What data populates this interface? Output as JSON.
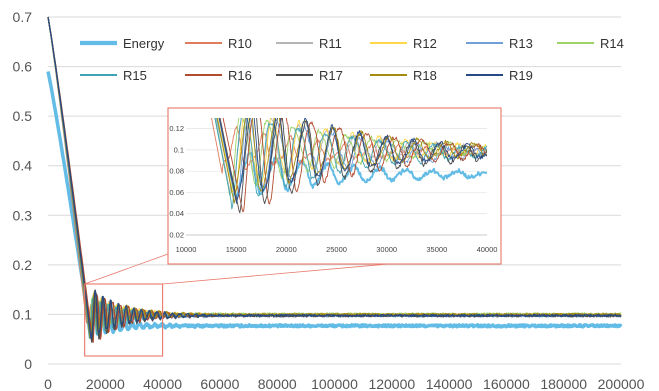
{
  "chart_data": {
    "type": "line",
    "title": "",
    "xlabel": "",
    "ylabel": "",
    "grid": true,
    "legend_position": "top",
    "main": {
      "xlim": [
        0,
        200000
      ],
      "ylim": [
        0,
        0.7
      ],
      "x_ticks": [
        "0",
        "20000",
        "40000",
        "60000",
        "80000",
        "100000",
        "120000",
        "140000",
        "160000",
        "180000",
        "200000"
      ],
      "y_ticks": [
        "0",
        "0.1",
        "0.2",
        "0.3",
        "0.4",
        "0.5",
        "0.6",
        "0.7"
      ],
      "zoom_region": {
        "x": [
          10000,
          40000
        ],
        "y": [
          0.02,
          0.13
        ]
      }
    },
    "inset": {
      "xlim": [
        10000,
        40000
      ],
      "ylim": [
        0.02,
        0.13
      ],
      "x_ticks": [
        "10000",
        "15000",
        "20000",
        "25000",
        "30000",
        "35000",
        "40000"
      ],
      "y_ticks": [
        "0.02",
        "0.04",
        "0.06",
        "0.08",
        "0.1",
        "0.12"
      ]
    },
    "series": [
      {
        "name": "Energy",
        "color": "#63bce5",
        "width": 3.5,
        "start": 0.59,
        "min_x": 15000,
        "min_y": 0.055,
        "plateau": 0.077,
        "amp": 0.012,
        "period": 2600,
        "phase": 0.0
      },
      {
        "name": "R10",
        "color": "#e07b5b",
        "width": 1.3,
        "start": 0.7,
        "min_x": 13600,
        "min_y": 0.078,
        "plateau": 0.098,
        "amp": 0.03,
        "period": 2700,
        "phase": 0.9
      },
      {
        "name": "R11",
        "color": "#b5b5b5",
        "width": 1.3,
        "start": 0.7,
        "min_x": 14400,
        "min_y": 0.06,
        "plateau": 0.099,
        "amp": 0.026,
        "period": 2750,
        "phase": 1.6
      },
      {
        "name": "R12",
        "color": "#ffd84a",
        "width": 1.3,
        "start": 0.7,
        "min_x": 14700,
        "min_y": 0.058,
        "plateau": 0.1,
        "amp": 0.025,
        "period": 2650,
        "phase": 2.3
      },
      {
        "name": "R13",
        "color": "#6fa0d8",
        "width": 1.3,
        "start": 0.7,
        "min_x": 14900,
        "min_y": 0.055,
        "plateau": 0.097,
        "amp": 0.026,
        "period": 2800,
        "phase": 3.0
      },
      {
        "name": "R14",
        "color": "#9fd36a",
        "width": 1.3,
        "start": 0.7,
        "min_x": 14300,
        "min_y": 0.062,
        "plateau": 0.101,
        "amp": 0.025,
        "period": 2600,
        "phase": 3.7
      },
      {
        "name": "R15",
        "color": "#3fa3b5",
        "width": 1.3,
        "start": 0.7,
        "min_x": 14500,
        "min_y": 0.052,
        "plateau": 0.098,
        "amp": 0.027,
        "period": 2700,
        "phase": 4.4
      },
      {
        "name": "R16",
        "color": "#b24a2e",
        "width": 1.3,
        "start": 0.7,
        "min_x": 15600,
        "min_y": 0.044,
        "plateau": 0.099,
        "amp": 0.028,
        "period": 2750,
        "phase": 5.1
      },
      {
        "name": "R17",
        "color": "#4e4e4e",
        "width": 1.3,
        "start": 0.7,
        "min_x": 15300,
        "min_y": 0.042,
        "plateau": 0.097,
        "amp": 0.028,
        "period": 2650,
        "phase": 5.8
      },
      {
        "name": "R18",
        "color": "#a48b12",
        "width": 1.3,
        "start": 0.7,
        "min_x": 14800,
        "min_y": 0.05,
        "plateau": 0.1,
        "amp": 0.026,
        "period": 2800,
        "phase": 0.4
      },
      {
        "name": "R19",
        "color": "#274a86",
        "width": 1.3,
        "start": 0.7,
        "min_x": 15100,
        "min_y": 0.047,
        "plateau": 0.098,
        "amp": 0.027,
        "period": 2700,
        "phase": 1.2
      }
    ]
  }
}
